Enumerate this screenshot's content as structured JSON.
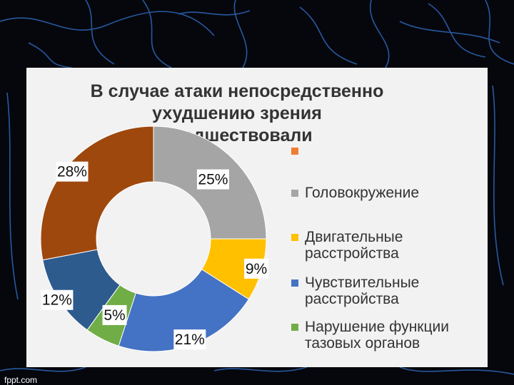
{
  "slide": {
    "title_lines": [
      "В случае атаки непосредственно",
      "ухудшению зрения",
      "предшествовали"
    ],
    "watermark": "fppt.com"
  },
  "colors": {
    "background": "#05070d",
    "slide": "#f2f2f2",
    "title": "#333333"
  },
  "chart_data": {
    "type": "pie",
    "donut": true,
    "title": "В случае атаки непосредственно ухудшению зрения предшествовали",
    "legend_position": "right",
    "slices": [
      {
        "name": "Головокружение",
        "value": 25,
        "label": "25%",
        "color": "#a5a5a5"
      },
      {
        "name": "Двигательные расстройства",
        "value": 9,
        "label": "9%",
        "color": "#ffc000"
      },
      {
        "name": "",
        "value": 21,
        "label": "21%",
        "color": "#4472c4"
      },
      {
        "name": "",
        "value": 5,
        "label": "5%",
        "color": "#70ad47"
      },
      {
        "name": "",
        "value": 12,
        "label": "12%",
        "color": "#2e5b8e"
      },
      {
        "name": "",
        "value": 28,
        "label": "28%",
        "color": "#9e480e"
      }
    ],
    "legend": [
      {
        "lines": [
          ""
        ],
        "color": "#ed7d31"
      },
      {
        "lines": [
          "Головокружение"
        ],
        "color": "#a5a5a5"
      },
      {
        "lines": [
          "Двигательные",
          "расстройства"
        ],
        "color": "#ffc000"
      },
      {
        "lines": [
          "Чувствительные",
          "расстройства"
        ],
        "color": "#4472c4"
      },
      {
        "lines": [
          "Нарушение функции",
          "тазовых органов"
        ],
        "color": "#70ad47"
      }
    ]
  }
}
